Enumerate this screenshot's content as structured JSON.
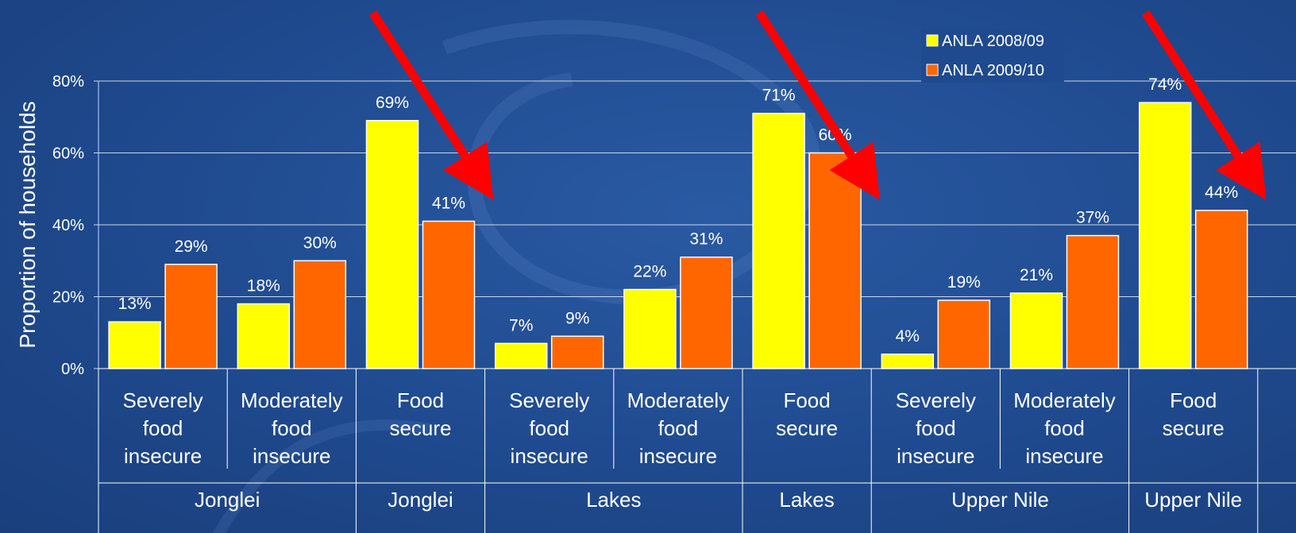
{
  "chart_data": {
    "type": "bar",
    "title": "",
    "ylabel": "Proportion of households",
    "xlabel": "",
    "ylim": [
      0,
      80
    ],
    "yticks": [
      "0%",
      "20%",
      "40%",
      "60%",
      "80%"
    ],
    "grid": true,
    "legend_position": "top-right",
    "series": [
      {
        "name": "ANLA 2008/09",
        "color": "#ffff00",
        "values": [
          13,
          18,
          69,
          7,
          22,
          71,
          4,
          21,
          74
        ]
      },
      {
        "name": "ANLA 2009/10",
        "color": "#ff6600",
        "values": [
          29,
          30,
          41,
          9,
          31,
          60,
          19,
          37,
          44
        ]
      }
    ],
    "data_labels": [
      [
        "13%",
        "18%",
        "69%",
        "7%",
        "22%",
        "71%",
        "4%",
        "21%",
        "74%"
      ],
      [
        "29%",
        "30%",
        "41%",
        "9%",
        "31%",
        "60%",
        "19%",
        "37%",
        "44%"
      ]
    ],
    "categories": [
      [
        "Severely",
        "food",
        "insecure"
      ],
      [
        "Moderately",
        "food",
        "insecure"
      ],
      [
        "Food",
        "secure"
      ],
      [
        "Severely",
        "food",
        "insecure"
      ],
      [
        "Moderately",
        "food",
        "insecure"
      ],
      [
        "Food",
        "secure"
      ],
      [
        "Severely",
        "food",
        "insecure"
      ],
      [
        "Moderately",
        "food",
        "insecure"
      ],
      [
        "Food",
        "secure"
      ]
    ],
    "groups": [
      "Jonglei",
      "Jonglei",
      "Lakes",
      "Lakes",
      "Upper Nile",
      "Upper Nile"
    ],
    "group_spans": [
      [
        0,
        1
      ],
      [
        2,
        2
      ],
      [
        3,
        4
      ],
      [
        5,
        5
      ],
      [
        6,
        7
      ],
      [
        8,
        8
      ]
    ],
    "annotations": [
      {
        "type": "arrow",
        "color": "#ff0000",
        "points_to_category": 2
      },
      {
        "type": "arrow",
        "color": "#ff0000",
        "points_to_category": 5
      },
      {
        "type": "arrow",
        "color": "#ff0000",
        "points_to_category": 8
      }
    ]
  }
}
